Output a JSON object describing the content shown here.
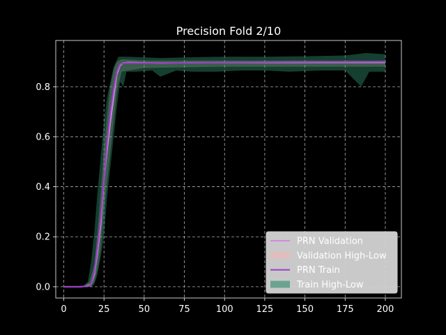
{
  "chart_data": {
    "type": "line",
    "title": "Precision Fold 2/10",
    "xlabel": "",
    "ylabel": "",
    "xlim": [
      -5,
      210
    ],
    "ylim": [
      -0.045,
      0.985
    ],
    "xticks": [
      0,
      25,
      50,
      75,
      100,
      125,
      150,
      175,
      200
    ],
    "yticks": [
      0.0,
      0.2,
      0.4,
      0.6,
      0.8
    ],
    "grid": true,
    "legend_position": "lower-right",
    "series": [
      {
        "name": "PRN Validation",
        "kind": "line",
        "color": "#d08ae0",
        "points": [
          [
            0,
            0.0
          ],
          [
            10,
            0.0
          ],
          [
            14,
            0.002
          ],
          [
            17,
            0.01
          ],
          [
            19,
            0.05
          ],
          [
            21,
            0.14
          ],
          [
            23,
            0.25
          ],
          [
            25,
            0.43
          ],
          [
            27,
            0.55
          ],
          [
            29,
            0.66
          ],
          [
            31,
            0.76
          ],
          [
            33,
            0.85
          ],
          [
            35,
            0.885
          ],
          [
            37,
            0.895
          ],
          [
            40,
            0.897
          ],
          [
            50,
            0.896
          ],
          [
            60,
            0.895
          ],
          [
            75,
            0.896
          ],
          [
            100,
            0.897
          ],
          [
            125,
            0.897
          ],
          [
            150,
            0.897
          ],
          [
            175,
            0.897
          ],
          [
            200,
            0.897
          ]
        ]
      },
      {
        "name": "Validation High-Low",
        "kind": "band",
        "color": "#f4b6b6",
        "upper": [
          [
            0,
            0.0
          ],
          [
            12,
            0.003
          ],
          [
            16,
            0.02
          ],
          [
            19,
            0.09
          ],
          [
            21,
            0.22
          ],
          [
            23,
            0.38
          ],
          [
            25,
            0.55
          ],
          [
            27,
            0.69
          ],
          [
            29,
            0.8
          ],
          [
            31,
            0.87
          ],
          [
            33,
            0.9
          ],
          [
            36,
            0.91
          ],
          [
            50,
            0.905
          ],
          [
            100,
            0.905
          ],
          [
            150,
            0.905
          ],
          [
            200,
            0.905
          ]
        ],
        "lower": [
          [
            0,
            0.0
          ],
          [
            14,
            0.0
          ],
          [
            17,
            0.0
          ],
          [
            19,
            0.02
          ],
          [
            21,
            0.07
          ],
          [
            23,
            0.15
          ],
          [
            25,
            0.3
          ],
          [
            27,
            0.42
          ],
          [
            29,
            0.54
          ],
          [
            31,
            0.66
          ],
          [
            33,
            0.78
          ],
          [
            36,
            0.86
          ],
          [
            50,
            0.875
          ],
          [
            100,
            0.88
          ],
          [
            150,
            0.88
          ],
          [
            200,
            0.88
          ]
        ]
      },
      {
        "name": "PRN Train",
        "kind": "line",
        "color": "#9b3fc4",
        "points": [
          [
            0,
            0.0
          ],
          [
            10,
            0.0
          ],
          [
            15,
            0.002
          ],
          [
            17,
            0.01
          ],
          [
            19,
            0.06
          ],
          [
            21,
            0.16
          ],
          [
            23,
            0.28
          ],
          [
            25,
            0.43
          ],
          [
            27,
            0.58
          ],
          [
            29,
            0.7
          ],
          [
            31,
            0.79
          ],
          [
            33,
            0.86
          ],
          [
            35,
            0.89
          ],
          [
            38,
            0.895
          ],
          [
            50,
            0.895
          ],
          [
            75,
            0.896
          ],
          [
            100,
            0.898
          ],
          [
            150,
            0.899
          ],
          [
            200,
            0.9
          ]
        ]
      },
      {
        "name": "Train High-Low",
        "kind": "band",
        "color": "#2e8b6a",
        "upper": [
          [
            0,
            0.0
          ],
          [
            12,
            0.002
          ],
          [
            15,
            0.02
          ],
          [
            17,
            0.1
          ],
          [
            19,
            0.22
          ],
          [
            21,
            0.38
          ],
          [
            23,
            0.52
          ],
          [
            25,
            0.66
          ],
          [
            27,
            0.76
          ],
          [
            29,
            0.82
          ],
          [
            31,
            0.88
          ],
          [
            34,
            0.92
          ],
          [
            40,
            0.92
          ],
          [
            60,
            0.915
          ],
          [
            80,
            0.918
          ],
          [
            100,
            0.92
          ],
          [
            125,
            0.92
          ],
          [
            150,
            0.922
          ],
          [
            175,
            0.925
          ],
          [
            188,
            0.935
          ],
          [
            200,
            0.93
          ]
        ],
        "lower": [
          [
            0,
            0.0
          ],
          [
            14,
            0.0
          ],
          [
            17,
            0.0
          ],
          [
            19,
            0.01
          ],
          [
            21,
            0.05
          ],
          [
            23,
            0.12
          ],
          [
            25,
            0.2
          ],
          [
            27,
            0.36
          ],
          [
            29,
            0.48
          ],
          [
            31,
            0.6
          ],
          [
            33,
            0.72
          ],
          [
            35,
            0.82
          ],
          [
            37,
            0.8
          ],
          [
            39,
            0.86
          ],
          [
            45,
            0.86
          ],
          [
            55,
            0.865
          ],
          [
            60,
            0.84
          ],
          [
            70,
            0.865
          ],
          [
            80,
            0.86
          ],
          [
            95,
            0.86
          ],
          [
            110,
            0.865
          ],
          [
            125,
            0.865
          ],
          [
            140,
            0.86
          ],
          [
            160,
            0.865
          ],
          [
            175,
            0.865
          ],
          [
            185,
            0.8
          ],
          [
            190,
            0.86
          ],
          [
            200,
            0.86
          ]
        ]
      }
    ]
  }
}
